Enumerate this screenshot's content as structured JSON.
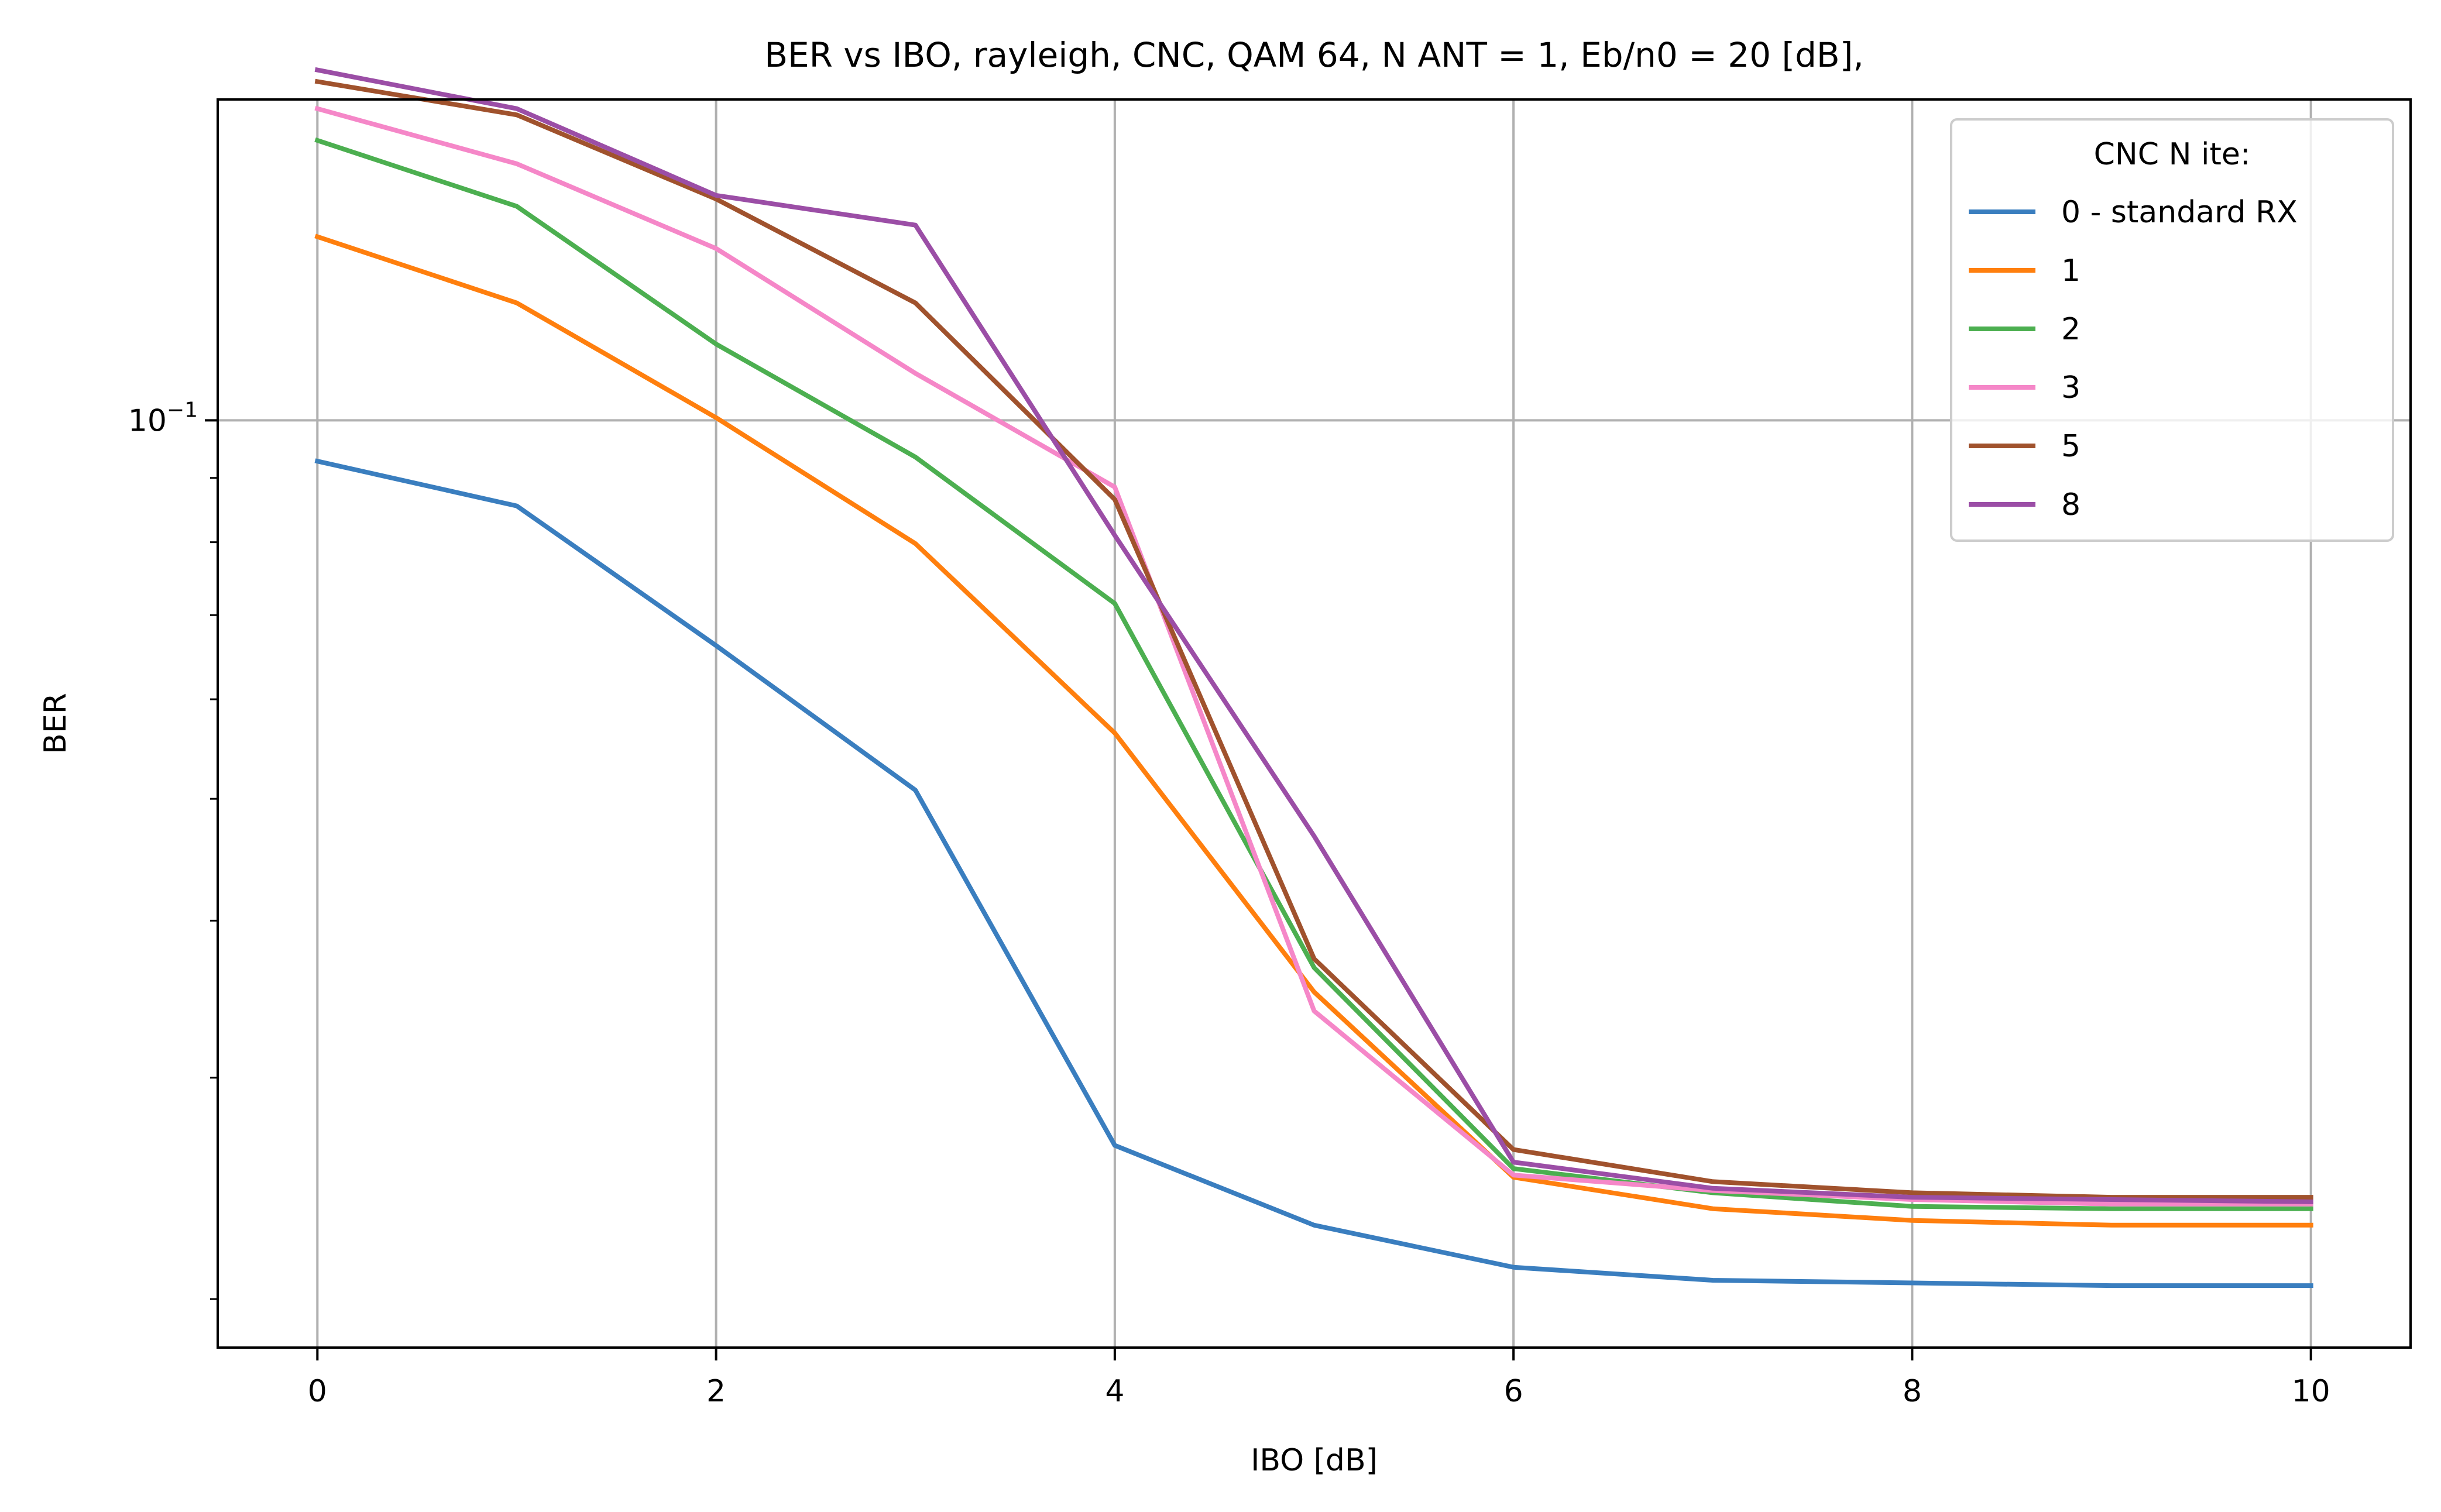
{
  "chart_data": {
    "type": "line",
    "title": "BER vs IBO, rayleigh, CNC, QAM 64, N ANT = 1, Eb/n0 = 20 [dB],",
    "xlabel": "IBO [dB]",
    "ylabel": "BER",
    "xlim": [
      -0.5,
      10.5
    ],
    "ylim": [
      0.0183,
      0.18
    ],
    "yscale": "log",
    "x_ticks": [
      0,
      2,
      4,
      6,
      8,
      10
    ],
    "x_tick_labels": [
      "0",
      "2",
      "4",
      "6",
      "8",
      "10"
    ],
    "y_major_ticks": [
      0.1
    ],
    "y_tick_labels": [
      {
        "base": "10",
        "exp": "−1"
      }
    ],
    "y_minor_ticks": [
      0.02,
      0.03,
      0.04,
      0.05,
      0.06,
      0.07,
      0.08,
      0.09
    ],
    "grid": true,
    "legend": {
      "title": "CNC N ite:",
      "placement": "top-right"
    },
    "x": [
      0,
      1,
      2,
      3,
      4,
      5,
      6,
      7,
      8,
      9,
      10
    ],
    "series": [
      {
        "name": "0 - standard RX",
        "color": "#3a7ebf",
        "values": [
          0.0928,
          0.0855,
          0.0662,
          0.0508,
          0.0265,
          0.0229,
          0.0212,
          0.0207,
          0.0206,
          0.0205,
          0.0205
        ]
      },
      {
        "name": "1",
        "color": "#ff7f0e",
        "values": [
          0.14,
          0.124,
          0.1005,
          0.0798,
          0.0564,
          0.0351,
          0.025,
          0.0236,
          0.0231,
          0.0229,
          0.0229
        ]
      },
      {
        "name": "2",
        "color": "#4caf50",
        "values": [
          0.167,
          0.148,
          0.115,
          0.0935,
          0.0715,
          0.0367,
          0.0254,
          0.0243,
          0.0237,
          0.0236,
          0.0236
        ]
      },
      {
        "name": "3",
        "color": "#f587c8",
        "values": [
          0.177,
          0.16,
          0.137,
          0.109,
          0.0885,
          0.0339,
          0.0251,
          0.0244,
          0.024,
          0.0238,
          0.0238
        ]
      },
      {
        "name": "5",
        "color": "#a0522d",
        "values": [
          0.186,
          0.175,
          0.15,
          0.124,
          0.0865,
          0.0373,
          0.0263,
          0.0248,
          0.0243,
          0.0241,
          0.0241
        ]
      },
      {
        "name": "8",
        "color": "#9b4ea6",
        "values": [
          0.19,
          0.177,
          0.151,
          0.143,
          0.081,
          0.0467,
          0.0257,
          0.0245,
          0.0241,
          0.024,
          0.0239
        ]
      }
    ]
  }
}
